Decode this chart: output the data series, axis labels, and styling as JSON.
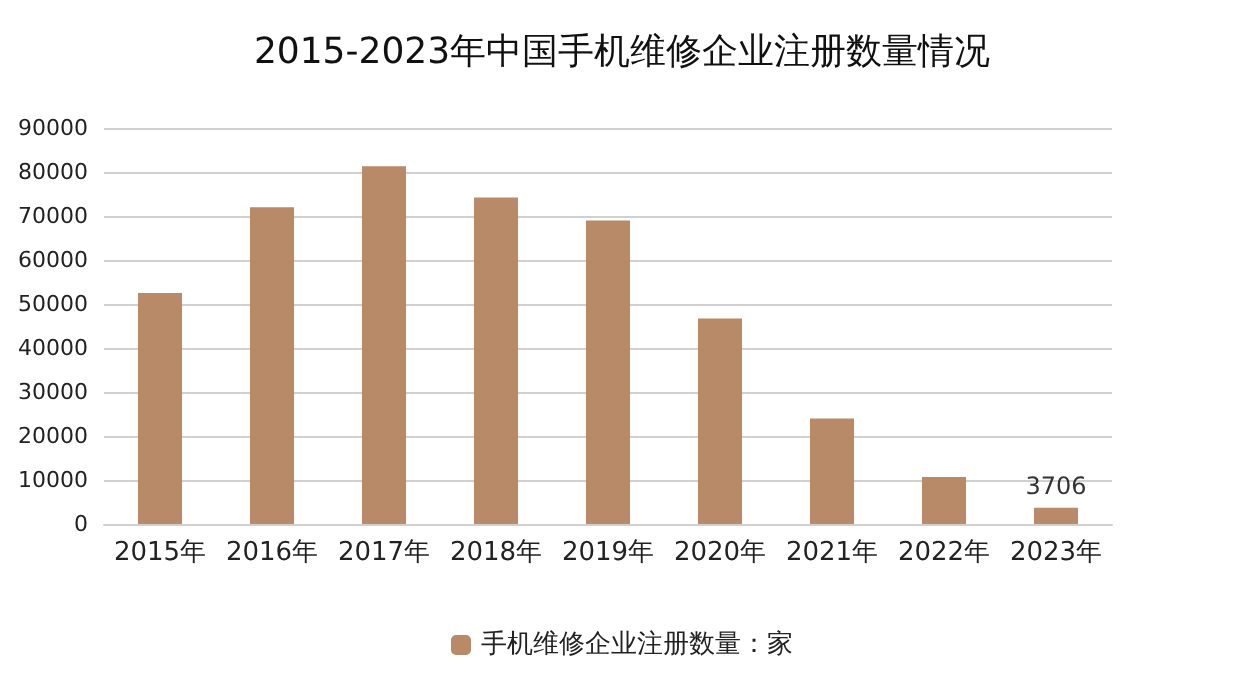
{
  "chart_data": {
    "type": "bar",
    "title": "2015-2023年中国手机维修企业注册数量情况",
    "categories": [
      "2015年",
      "2016年",
      "2017年",
      "2018年",
      "2019年",
      "2020年",
      "2021年",
      "2022年",
      "2023年"
    ],
    "series": [
      {
        "name": "手机维修企业注册数量：家",
        "color": "#b98a68",
        "values": [
          52500,
          72000,
          81300,
          74200,
          69000,
          46700,
          24000,
          10700,
          3706
        ],
        "value_labels": [
          null,
          null,
          null,
          null,
          null,
          null,
          null,
          null,
          "3706"
        ]
      }
    ],
    "ylim": [
      0,
      90000
    ],
    "yticks": [
      0,
      10000,
      20000,
      30000,
      40000,
      50000,
      60000,
      70000,
      80000,
      90000
    ],
    "grid": "y",
    "legend": "bottom"
  }
}
